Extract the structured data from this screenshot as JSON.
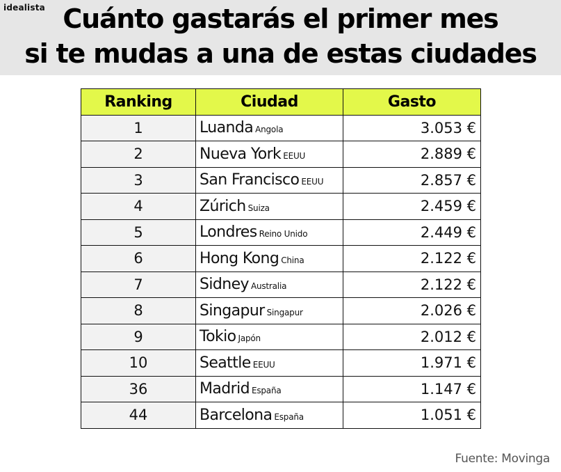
{
  "brand": {
    "logo_text": "idealista"
  },
  "header": {
    "title_line1": "Cuánto gastarás el primer mes",
    "title_line2": "si te mudas a una de estas ciudades"
  },
  "table": {
    "columns": [
      "Ranking",
      "Ciudad",
      "Gasto"
    ],
    "header_color": "#e3f84a",
    "rows": [
      {
        "rank": "1",
        "city": "Luanda",
        "country": "Angola",
        "cost": "3.053 €"
      },
      {
        "rank": "2",
        "city": "Nueva York",
        "country": "EEUU",
        "cost": "2.889 €"
      },
      {
        "rank": "3",
        "city": "San Francisco",
        "country": "EEUU",
        "cost": "2.857 €"
      },
      {
        "rank": "4",
        "city": "Zúrich",
        "country": "Suiza",
        "cost": "2.459 €"
      },
      {
        "rank": "5",
        "city": "Londres",
        "country": "Reino Unido",
        "cost": "2.449 €"
      },
      {
        "rank": "6",
        "city": "Hong Kong",
        "country": "China",
        "cost": "2.122 €"
      },
      {
        "rank": "7",
        "city": "Sidney",
        "country": "Australia",
        "cost": "2.122 €"
      },
      {
        "rank": "8",
        "city": "Singapur",
        "country": "Singapur",
        "cost": "2.026 €"
      },
      {
        "rank": "9",
        "city": "Tokio",
        "country": "Japón",
        "cost": "2.012 €"
      },
      {
        "rank": "10",
        "city": "Seattle",
        "country": "EEUU",
        "cost": "1.971 €"
      },
      {
        "rank": "36",
        "city": "Madrid",
        "country": "España",
        "cost": "1.147 €"
      },
      {
        "rank": "44",
        "city": "Barcelona",
        "country": "España",
        "cost": "1.051 €"
      }
    ]
  },
  "footer": {
    "source": "Fuente: Movinga"
  }
}
